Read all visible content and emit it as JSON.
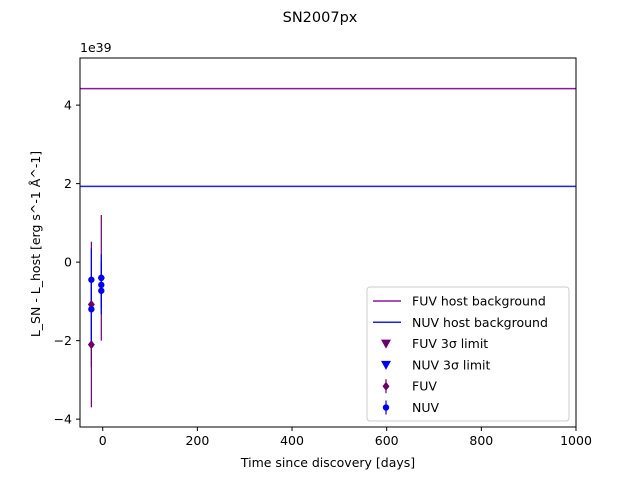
{
  "chart_data": {
    "type": "scatter",
    "title": "SN2007px",
    "xlabel": "Time since discovery [days]",
    "ylabel": "L_SN - L_host [erg s^-1 Å^-1]",
    "y_multiplier_label": "1e39",
    "xlim": [
      -48,
      1000
    ],
    "ylim": [
      -4.2,
      5.2
    ],
    "x_ticks": [
      0,
      200,
      400,
      600,
      800,
      1000
    ],
    "y_ticks": [
      -4,
      -2,
      0,
      2,
      4
    ],
    "grid": false,
    "legend_position": "lower right",
    "host_backgrounds": [
      {
        "name": "FUV host background",
        "y": 4.42,
        "color": "#8b1a9b"
      },
      {
        "name": "NUV host background",
        "y": 1.93,
        "color": "#1f1fe6"
      }
    ],
    "limits": [
      {
        "name": "FUV 3σ limit",
        "color": "#6b006b",
        "points": []
      },
      {
        "name": "NUV 3σ limit",
        "color": "#0000ee",
        "points": []
      }
    ],
    "series": [
      {
        "name": "FUV",
        "color": "#6b006b",
        "marker": "diamond",
        "points": [
          {
            "x": -24,
            "y": -1.08,
            "err": 1.6
          },
          {
            "x": -24,
            "y": -2.1,
            "err": 1.6
          },
          {
            "x": -3,
            "y": -0.4,
            "err": 1.6
          }
        ]
      },
      {
        "name": "NUV",
        "color": "#0000ee",
        "marker": "circle",
        "points": [
          {
            "x": -24,
            "y": -0.45,
            "err": 0.8
          },
          {
            "x": -24,
            "y": -1.2,
            "err": 0.8
          },
          {
            "x": -3,
            "y": -0.4,
            "err": 0.6
          },
          {
            "x": -3,
            "y": -0.58,
            "err": 0.6
          },
          {
            "x": -3,
            "y": -0.73,
            "err": 0.6
          }
        ]
      }
    ]
  }
}
